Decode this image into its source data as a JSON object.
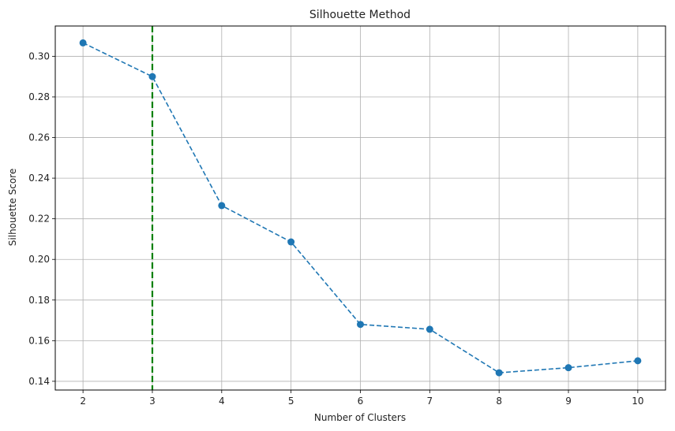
{
  "chart_data": {
    "type": "line",
    "title": "Silhouette Method",
    "xlabel": "Number of Clusters",
    "ylabel": "Silhouette Score",
    "x": [
      2,
      3,
      4,
      5,
      6,
      7,
      8,
      9,
      10
    ],
    "series": [
      {
        "values": [
          0.3066,
          0.29,
          0.2265,
          0.2086,
          0.168,
          0.1656,
          0.1442,
          0.1467,
          0.1501
        ],
        "color": "#1f77b4",
        "line_style": "dashed",
        "marker": "circle"
      }
    ],
    "reference_line": {
      "orientation": "vertical",
      "x": 3,
      "color": "#008000",
      "line_style": "dashed"
    },
    "xlim": [
      1.6,
      10.4
    ],
    "ylim": [
      0.1357,
      0.3149
    ],
    "xticks": [
      "2",
      "3",
      "4",
      "5",
      "6",
      "7",
      "8",
      "9",
      "10"
    ],
    "yticks": [
      "0.14",
      "0.16",
      "0.18",
      "0.20",
      "0.22",
      "0.24",
      "0.26",
      "0.28",
      "0.30"
    ],
    "grid": true,
    "legend": "none"
  }
}
